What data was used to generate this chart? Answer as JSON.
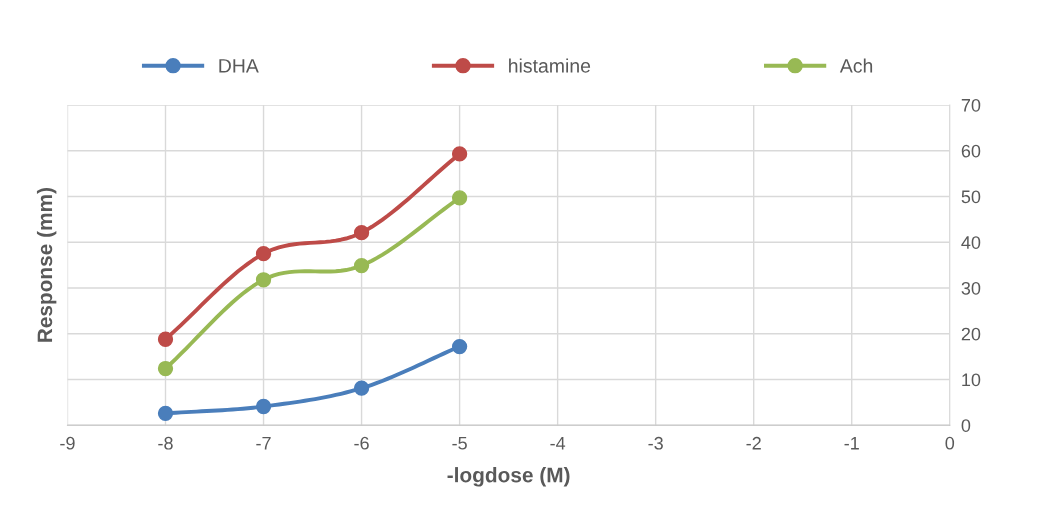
{
  "chart_data": {
    "type": "line",
    "xlabel": "-logdose (M)",
    "ylabel": "Response (mm)",
    "x": [
      -8,
      -7,
      -6,
      -5
    ],
    "series": [
      {
        "name": "DHA",
        "color": "#4a7ebb",
        "values": [
          2.6,
          4.1,
          8.1,
          17.2
        ]
      },
      {
        "name": "histamine",
        "color": "#be4b48",
        "values": [
          18.8,
          37.5,
          42.1,
          59.3
        ]
      },
      {
        "name": "Ach",
        "color": "#98b954",
        "values": [
          12.4,
          31.8,
          34.9,
          49.7
        ]
      }
    ],
    "xlim": [
      -9,
      0
    ],
    "xticks": [
      -9,
      -8,
      -7,
      -6,
      -5,
      -4,
      -3,
      -2,
      -1,
      0
    ],
    "ylim": [
      0,
      70
    ],
    "yticks": [
      0,
      10,
      20,
      30,
      40,
      50,
      60,
      70
    ],
    "grid": true,
    "legend": "top",
    "marker": "circle",
    "line_style": "solid"
  }
}
